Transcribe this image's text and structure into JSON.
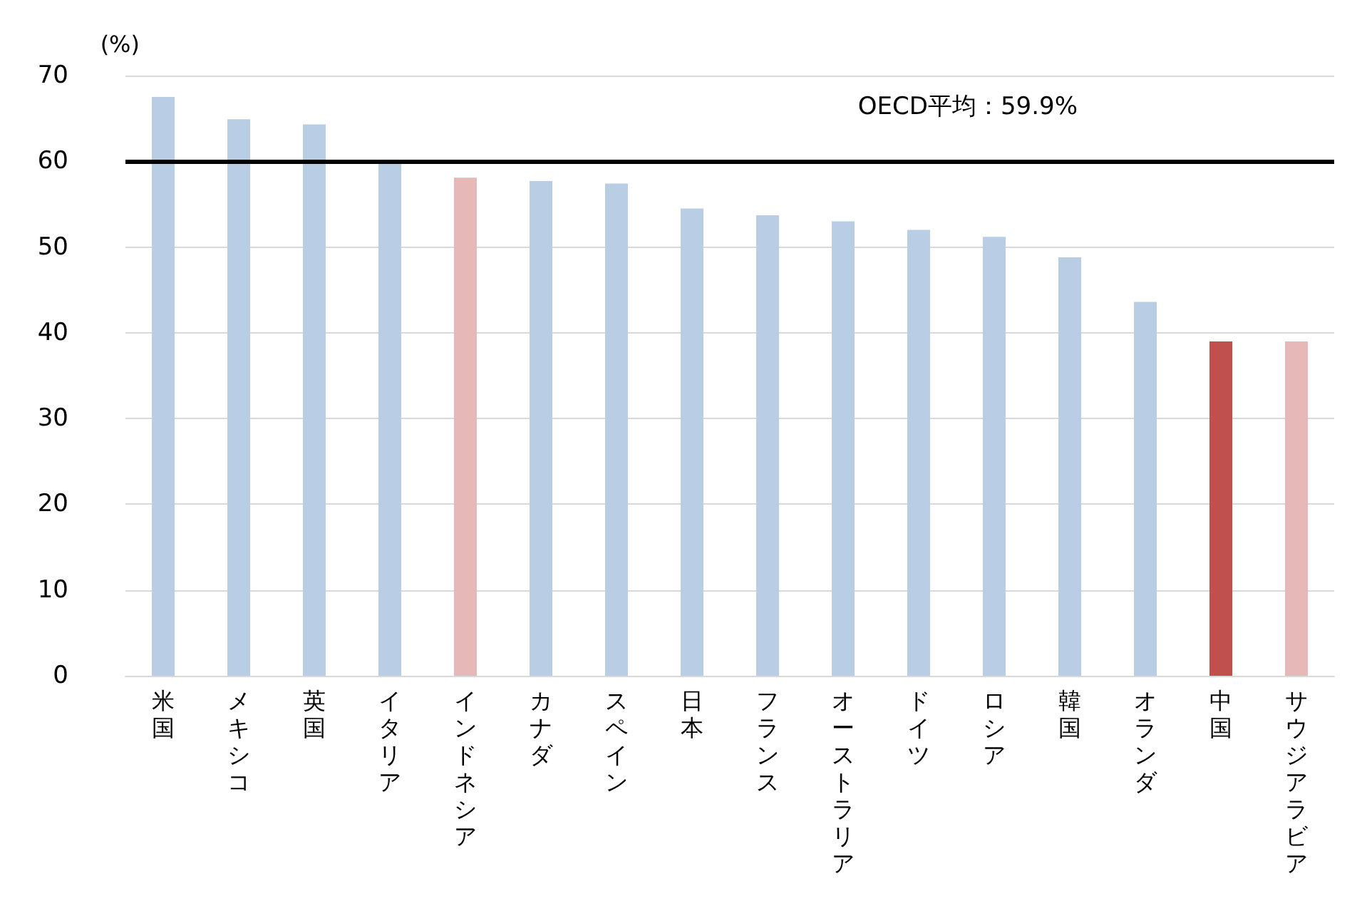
{
  "chart_data": {
    "type": "bar",
    "ylabel": "(%)",
    "categories": [
      "米国",
      "メキシコ",
      "英国",
      "イタリア",
      "インドネシア",
      "カナダ",
      "スペイン",
      "日本",
      "フランス",
      "オーストラリア",
      "ドイツ",
      "ロシア",
      "韓国",
      "オランダ",
      "中国",
      "サウジアラビア"
    ],
    "values": [
      67.5,
      64.9,
      64.3,
      60.0,
      58.1,
      57.7,
      57.4,
      54.5,
      53.7,
      53.0,
      52.0,
      51.2,
      48.8,
      43.6,
      39.0,
      39.0
    ],
    "colors": [
      "#b9cde5",
      "#b9cde5",
      "#b9cde5",
      "#b9cde5",
      "#e6b9b8",
      "#b9cde5",
      "#b9cde5",
      "#b9cde5",
      "#b9cde5",
      "#b9cde5",
      "#b9cde5",
      "#b9cde5",
      "#b9cde5",
      "#b9cde5",
      "#c0504d",
      "#e6b9b8"
    ],
    "ylim": [
      0,
      70
    ],
    "yticks": [
      0,
      10,
      20,
      30,
      40,
      50,
      60,
      70
    ],
    "grid": "y",
    "ref_lines": [
      {
        "axis": "y",
        "value": 59.9,
        "label": "OECD平均：59.9%",
        "color": "#000000"
      }
    ]
  }
}
